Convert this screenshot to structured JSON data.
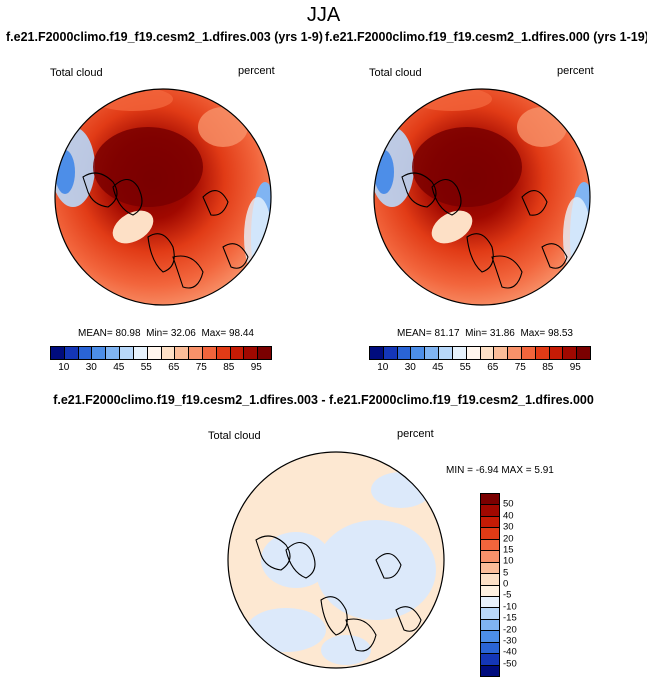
{
  "title": "JJA",
  "panels": [
    {
      "case_title": "f.e21.F2000climo.f19_f19.cesm2_1.dfires.003 (yrs 1-9)",
      "variable": "Total cloud",
      "units": "percent",
      "stats": {
        "mean_label": "MEAN=",
        "mean": "80.98",
        "min_label": "Min=",
        "min": "32.06",
        "max_label": "Max=",
        "max": "98.44"
      }
    },
    {
      "case_title": "f.e21.F2000climo.f19_f19.cesm2_1.dfires.000 (yrs 1-19)",
      "variable": "Total cloud",
      "units": "percent",
      "stats": {
        "mean_label": "MEAN=",
        "mean": "81.17",
        "min_label": "Min=",
        "min": "31.86",
        "max_label": "Max=",
        "max": "98.53"
      }
    }
  ],
  "colorbar_abs": {
    "colors": [
      "#000c7e",
      "#1436b8",
      "#2a64d6",
      "#4d8ee8",
      "#80b4f2",
      "#b8d8fa",
      "#e6f2fd",
      "#fff6ee",
      "#fde0c6",
      "#fbbd99",
      "#f8926a",
      "#f2653c",
      "#e13b16",
      "#c51b05",
      "#a00800",
      "#7a0000"
    ],
    "tick_labels": [
      "10",
      "30",
      "45",
      "55",
      "65",
      "75",
      "85",
      "95"
    ]
  },
  "diff": {
    "title": "f.e21.F2000climo.f19_f19.cesm2_1.dfires.003 - f.e21.F2000climo.f19_f19.cesm2_1.dfires.000",
    "variable": "Total cloud",
    "units": "percent",
    "stats": {
      "min_label": "MIN =",
      "min": "-6.94",
      "max_label": "MAX =",
      "max": "5.91"
    }
  },
  "colorbar_diff": {
    "colors_top_to_bottom": [
      "#7a0000",
      "#a00800",
      "#c51b05",
      "#e13b16",
      "#f2653c",
      "#f8926a",
      "#fbbd99",
      "#fde0c6",
      "#fff2e2",
      "#e8f2fd",
      "#b8d8fa",
      "#80b4f2",
      "#4d8ee8",
      "#2a64d6",
      "#1436b8",
      "#000c7e"
    ],
    "tick_labels": [
      "50",
      "40",
      "30",
      "20",
      "15",
      "10",
      "5",
      "0",
      "-5",
      "-10",
      "-15",
      "-20",
      "-30",
      "-40",
      "-50"
    ]
  },
  "chart_data": [
    {
      "type": "heatmap",
      "projection": "north polar stereographic",
      "title": "f.e21.F2000climo.f19_f19.cesm2_1.dfires.003 (yrs 1-9)",
      "variable": "Total cloud",
      "units": "percent",
      "mean": 80.98,
      "min": 32.06,
      "max": 98.44,
      "levels": [
        10,
        20,
        30,
        40,
        45,
        50,
        55,
        60,
        65,
        70,
        75,
        80,
        85,
        90,
        95
      ]
    },
    {
      "type": "heatmap",
      "projection": "north polar stereographic",
      "title": "f.e21.F2000climo.f19_f19.cesm2_1.dfires.000 (yrs 1-19)",
      "variable": "Total cloud",
      "units": "percent",
      "mean": 81.17,
      "min": 31.86,
      "max": 98.53,
      "levels": [
        10,
        20,
        30,
        40,
        45,
        50,
        55,
        60,
        65,
        70,
        75,
        80,
        85,
        90,
        95
      ]
    },
    {
      "type": "heatmap",
      "projection": "north polar stereographic",
      "title": "f.e21.F2000climo.f19_f19.cesm2_1.dfires.003 - f.e21.F2000climo.f19_f19.cesm2_1.dfires.000",
      "variable": "Total cloud",
      "units": "percent",
      "min": -6.94,
      "max": 5.91,
      "levels": [
        -50,
        -40,
        -30,
        -20,
        -15,
        -10,
        -5,
        0,
        5,
        10,
        15,
        20,
        30,
        40,
        50
      ]
    }
  ]
}
